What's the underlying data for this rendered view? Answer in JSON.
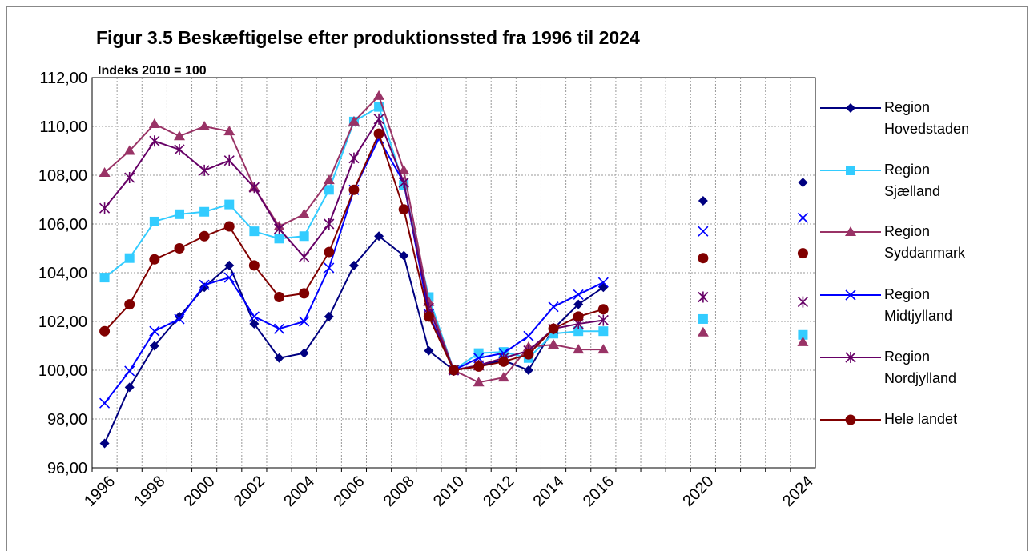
{
  "chart_data": {
    "type": "line",
    "title": "Figur 3.5 Beskæftigelse efter produktionssted fra 1996 til 2024",
    "subtitle": "Indeks 2010 = 100",
    "categories": [
      "1996",
      null,
      "1998",
      null,
      "2000",
      null,
      "2002",
      null,
      "2004",
      null,
      "2006",
      null,
      "2008",
      null,
      "2010",
      null,
      "2012",
      null,
      "2014",
      null,
      "2016",
      null,
      null,
      null,
      "2020",
      null,
      null,
      null,
      "2024"
    ],
    "ylim": [
      96,
      112
    ],
    "yticks": [
      {
        "value": 96,
        "label": "96,00"
      },
      {
        "value": 98,
        "label": "98,00"
      },
      {
        "value": 100,
        "label": "100,00"
      },
      {
        "value": 102,
        "label": "102,00"
      },
      {
        "value": 104,
        "label": "104,00"
      },
      {
        "value": 106,
        "label": "106,00"
      },
      {
        "value": 108,
        "label": "108,00"
      },
      {
        "value": 110,
        "label": "110,00"
      },
      {
        "value": 112,
        "label": "112,00"
      }
    ],
    "grid": true,
    "legend": "right",
    "series": [
      {
        "name": "Region Hovedstaden",
        "color": "#000080",
        "marker": "diamond",
        "values": [
          97.0,
          99.3,
          101.0,
          102.2,
          103.4,
          104.3,
          101.9,
          100.5,
          100.7,
          102.2,
          104.3,
          105.5,
          104.7,
          100.8,
          100,
          100.2,
          100.4,
          100.0,
          101.7,
          102.7,
          103.4,
          null,
          null,
          null,
          106.95,
          null,
          null,
          null,
          107.7
        ]
      },
      {
        "name": "Region Sjælland",
        "color": "#33ccff",
        "marker": "square",
        "values": [
          103.8,
          104.6,
          106.1,
          106.4,
          106.5,
          106.8,
          105.7,
          105.4,
          105.5,
          107.4,
          110.2,
          110.8,
          107.6,
          103.0,
          100,
          100.7,
          100.75,
          100.5,
          101.5,
          101.6,
          101.6,
          null,
          null,
          null,
          102.1,
          null,
          null,
          null,
          101.45
        ]
      },
      {
        "name": "Region Syddanmark",
        "color": "#993366",
        "marker": "triangle",
        "values": [
          108.1,
          109.0,
          110.1,
          109.6,
          110.0,
          109.8,
          107.5,
          105.9,
          106.4,
          107.8,
          110.2,
          111.25,
          108.2,
          102.8,
          100,
          99.5,
          99.7,
          100.95,
          101.05,
          100.85,
          100.85,
          null,
          null,
          null,
          101.55,
          null,
          null,
          null,
          101.15
        ]
      },
      {
        "name": "Region Midtjylland",
        "color": "#0000ff",
        "marker": "x",
        "values": [
          98.65,
          99.97,
          101.6,
          102.1,
          103.5,
          103.8,
          102.2,
          101.7,
          102.0,
          104.2,
          107.4,
          109.5,
          107.7,
          102.3,
          100,
          100.5,
          100.7,
          101.4,
          102.6,
          103.1,
          103.6,
          null,
          null,
          null,
          105.7,
          null,
          null,
          null,
          106.25
        ]
      },
      {
        "name": "Region Nordjylland",
        "color": "#660066",
        "marker": "asterisk",
        "values": [
          106.65,
          107.9,
          109.4,
          109.05,
          108.2,
          108.6,
          107.5,
          105.8,
          104.65,
          106.0,
          108.7,
          110.3,
          107.7,
          102.55,
          100,
          100.2,
          100.5,
          100.8,
          101.7,
          101.9,
          102.05,
          null,
          null,
          null,
          103.0,
          null,
          null,
          null,
          102.8
        ]
      },
      {
        "name": "Hele landet",
        "color": "#800000",
        "marker": "circle",
        "values": [
          101.6,
          102.7,
          104.55,
          105.0,
          105.5,
          105.9,
          104.3,
          103.0,
          103.15,
          104.85,
          107.4,
          109.7,
          106.6,
          102.2,
          100,
          100.15,
          100.35,
          100.65,
          101.7,
          102.2,
          102.5,
          null,
          null,
          null,
          104.6,
          null,
          null,
          null,
          104.8
        ]
      }
    ]
  }
}
